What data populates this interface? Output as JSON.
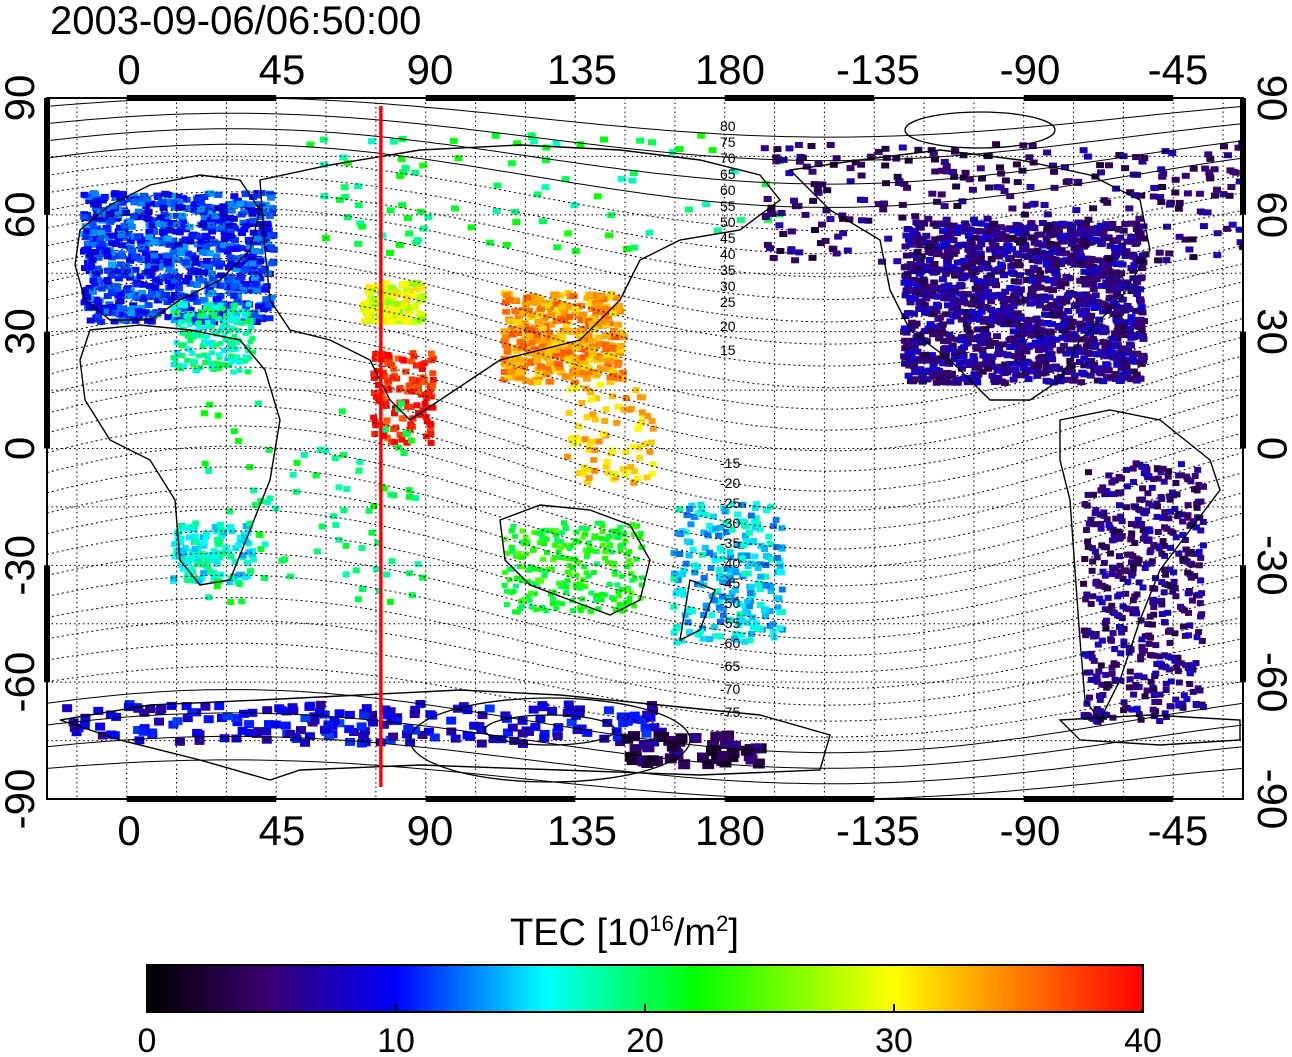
{
  "timestamp": "2003-09-06/06:50:00",
  "lon_ticks": [
    "0",
    "45",
    "90",
    "135",
    "180",
    "-135",
    "-90",
    "-45"
  ],
  "lat_ticks": [
    "90",
    "60",
    "30",
    "0",
    "-30",
    "-60",
    "-90"
  ],
  "contour_labels_north": [
    "80",
    "75",
    "70",
    "65",
    "60",
    "55",
    "50",
    "45",
    "40",
    "35",
    "30",
    "25",
    "20",
    "15"
  ],
  "contour_labels_south": [
    "-15",
    "-20",
    "-25",
    "-30",
    "-35",
    "-40",
    "-45",
    "-50",
    "-55",
    "-60",
    "-65",
    "-70",
    "-75"
  ],
  "colorbar": {
    "title": "TEC  [10",
    "title_exp": "16",
    "title_unit": "/m",
    "title_unit_exp": "2",
    "title_close": "]",
    "ticks": [
      "0",
      "10",
      "20",
      "30",
      "40"
    ],
    "colors": [
      "#000000",
      "#4b0082",
      "#0000ff",
      "#00ffff",
      "#00ff00",
      "#ffff00",
      "#ff8000",
      "#ff0000"
    ]
  },
  "colors": {
    "meridian_line": "#ff0000",
    "coast": "#000000",
    "contour": "#000000"
  },
  "meridian_longitude": 76.5
}
